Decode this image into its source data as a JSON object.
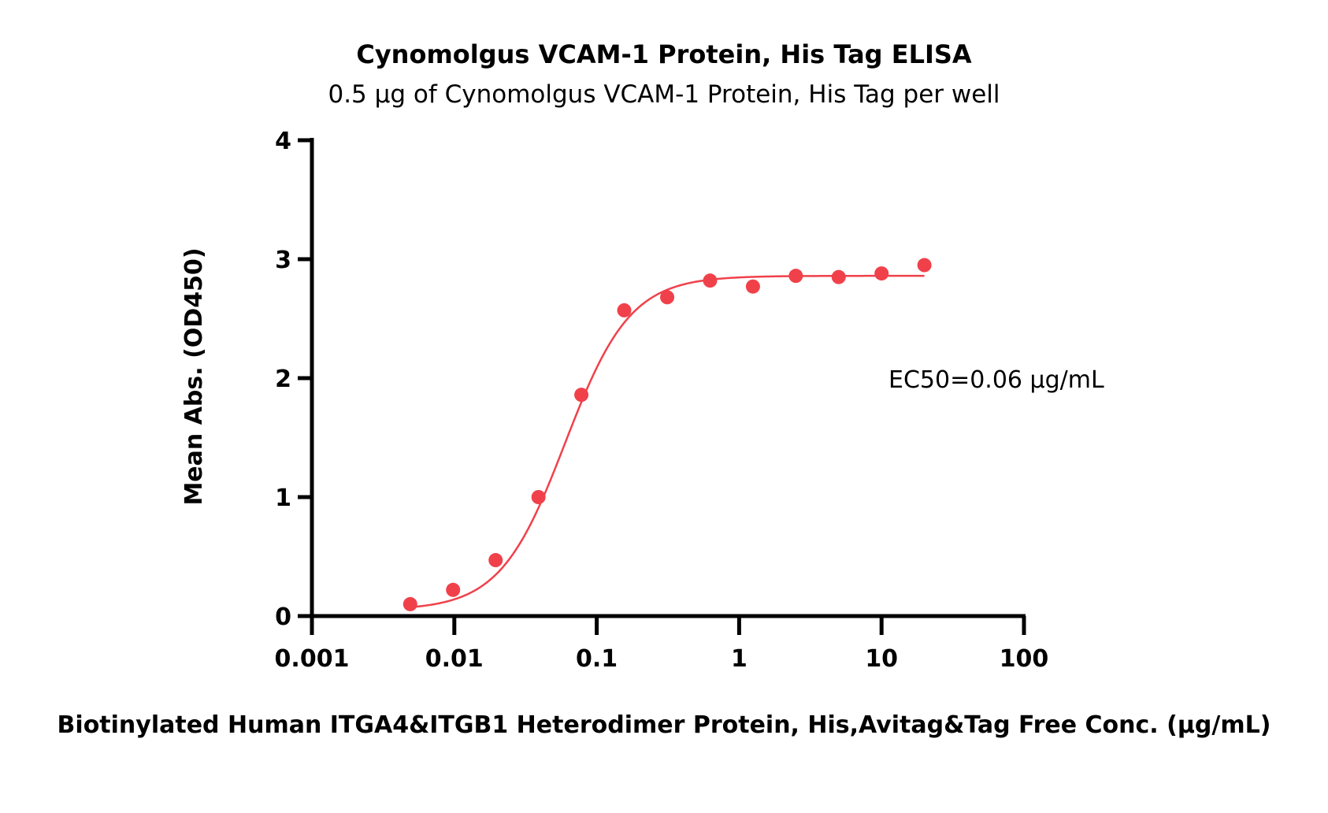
{
  "chart_data": {
    "type": "scatter",
    "title": "Cynomolgus VCAM-1 Protein, His Tag ELISA",
    "subtitle": "0.5 μg of Cynomolgus VCAM-1 Protein, His Tag per well",
    "xlabel": "Biotinylated Human ITGA4&ITGB1 Heterodimer Protein, His,Avitag&Tag Free Conc. (μg/mL)",
    "ylabel": "Mean Abs. (OD450)",
    "x_scale": "log",
    "xlim": [
      0.001,
      100
    ],
    "ylim": [
      0,
      4
    ],
    "x_ticks": [
      0.001,
      0.01,
      0.1,
      1,
      10,
      100
    ],
    "x_tick_labels": [
      "0.001",
      "0.01",
      "0.1",
      "1",
      "10",
      "100"
    ],
    "y_ticks": [
      0,
      1,
      2,
      3,
      4
    ],
    "y_tick_labels": [
      "0",
      "1",
      "2",
      "3",
      "4"
    ],
    "grid": false,
    "annotation": "EC50=0.06 μg/mL",
    "color": "#f0414a",
    "series": [
      {
        "x": [
          0.0049,
          0.0098,
          0.0195,
          0.039,
          0.078,
          0.156,
          0.3125,
          0.625,
          1.25,
          2.5,
          5,
          10,
          20
        ],
        "y": [
          0.1,
          0.22,
          0.47,
          1.0,
          1.86,
          2.57,
          2.68,
          2.82,
          2.77,
          2.86,
          2.85,
          2.88,
          2.95
        ]
      }
    ],
    "fit": {
      "model": "4PL",
      "bottom": 0.05,
      "top": 2.86,
      "ec50": 0.06,
      "hill": 1.9,
      "x_range": [
        0.0049,
        20
      ]
    }
  }
}
